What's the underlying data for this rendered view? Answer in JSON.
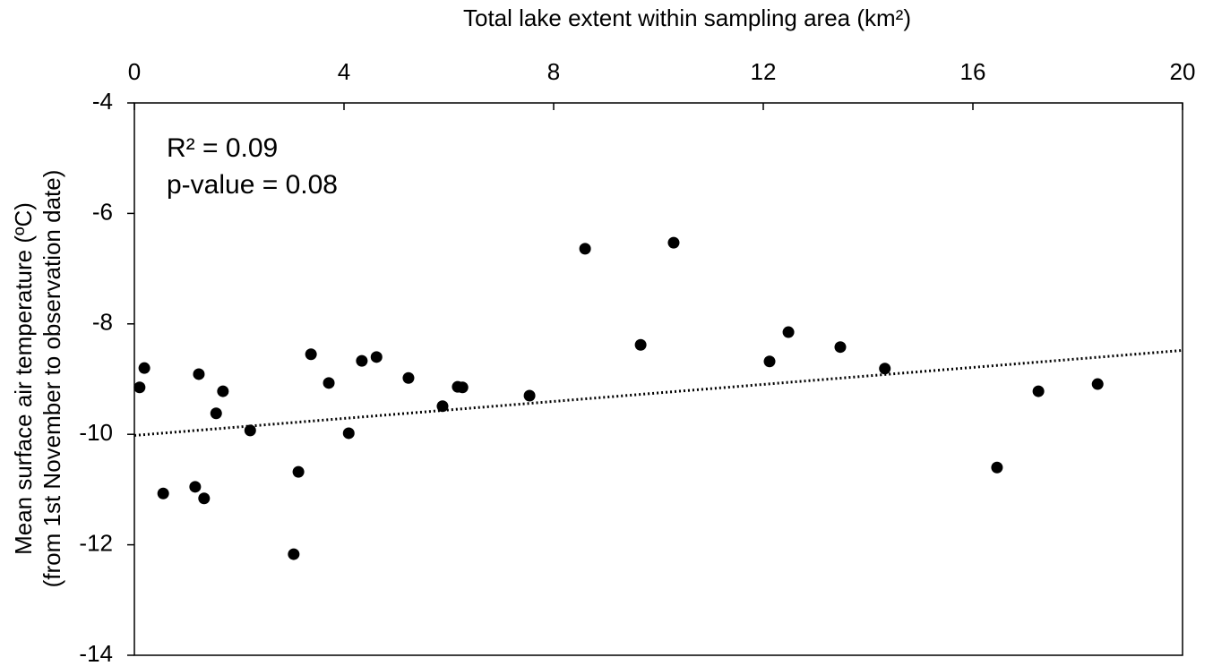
{
  "chart_data": {
    "type": "scatter",
    "x_label": "Total lake extent within sampling area (km²)",
    "y_label": [
      "Mean surface air temperature (ºC)",
      "(from 1st November to observation date)"
    ],
    "annotations": [
      "R² = 0.09",
      "p-value = 0.08"
    ],
    "color": "#000000",
    "xlim": [
      0,
      20
    ],
    "xticks": [
      0,
      4,
      8,
      12,
      16,
      20
    ],
    "ylim": [
      -14,
      -4
    ],
    "yticks": [
      -14,
      -12,
      -10,
      -8,
      -6,
      -4
    ],
    "x": [
      0.1,
      0.19,
      0.55,
      1.16,
      1.23,
      1.33,
      1.56,
      1.69,
      2.21,
      3.04,
      3.13,
      3.37,
      3.71,
      4.09,
      4.34,
      4.62,
      5.23,
      5.88,
      6.17,
      6.26,
      7.54,
      8.6,
      9.66,
      10.29,
      12.12,
      12.48,
      13.47,
      14.32,
      16.46,
      17.25,
      18.38
    ],
    "values": [
      -9.15,
      -8.8,
      -11.07,
      -10.95,
      -8.91,
      -11.16,
      -9.62,
      -9.22,
      -9.93,
      -12.17,
      -10.68,
      -8.55,
      -9.07,
      -9.98,
      -8.67,
      -8.6,
      -8.98,
      -9.49,
      -9.14,
      -9.15,
      -9.3,
      -6.64,
      -8.38,
      -6.53,
      -8.68,
      -8.15,
      -8.42,
      -8.81,
      -10.6,
      -9.22,
      -9.09
    ],
    "trendline": {
      "x": [
        0,
        20
      ],
      "y": [
        -10.02,
        -8.48
      ]
    }
  }
}
